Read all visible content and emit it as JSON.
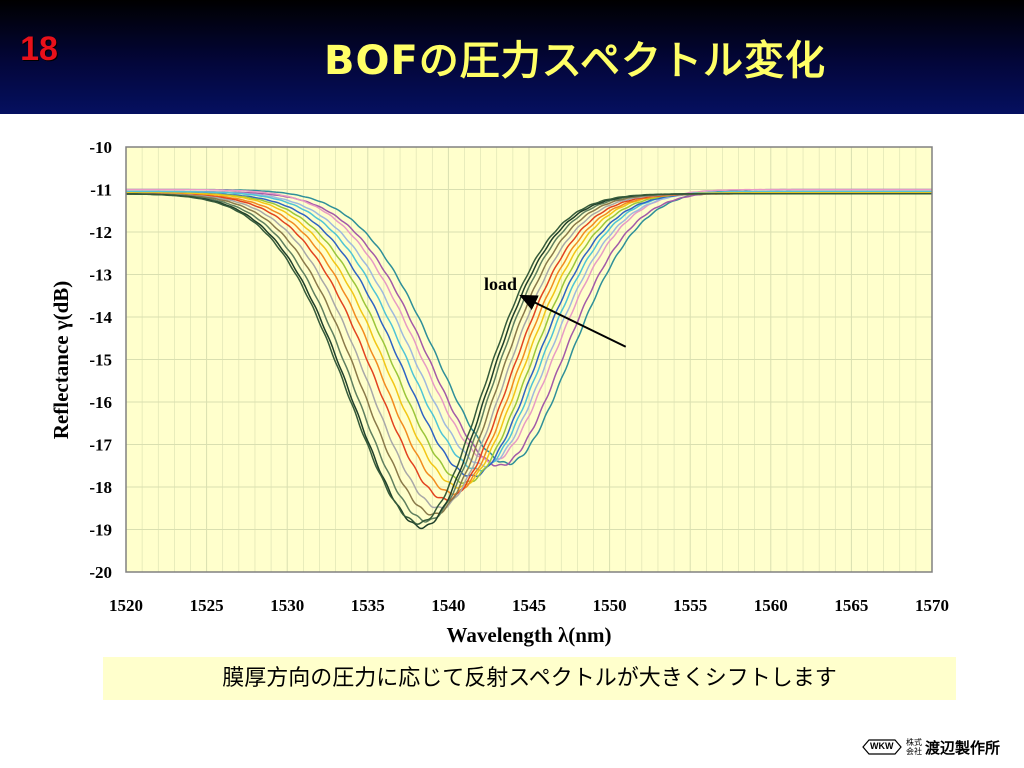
{
  "slide": {
    "number": "18",
    "title": "BOFの圧力スペクトル変化",
    "caption": "膜厚方向の圧力に応じて反射スペクトルが大きくシフトします"
  },
  "logo": {
    "badge": "WKW",
    "small_top": "株式",
    "small_bottom": "会社",
    "name": "渡辺製作所"
  },
  "chart_data": {
    "type": "line",
    "xlabel": "Wavelength λ(nm)",
    "ylabel": "Reflectance γ(dB)",
    "xlim": [
      1520,
      1570
    ],
    "ylim": [
      -20,
      -10
    ],
    "xticks": [
      1520,
      1525,
      1530,
      1535,
      1540,
      1545,
      1550,
      1555,
      1560,
      1565,
      1570
    ],
    "yticks": [
      -10,
      -11,
      -12,
      -13,
      -14,
      -15,
      -16,
      -17,
      -18,
      -19,
      -20
    ],
    "grid": true,
    "legend": "none",
    "annotations": [
      {
        "text": "load",
        "from": [
          1551.0,
          -14.7
        ],
        "to": [
          1544.5,
          -13.5
        ]
      }
    ],
    "colors": {
      "plot_background": "#ffffcc",
      "gridline": "#d9dfb0",
      "arrow": "#000000"
    },
    "series": [
      {
        "color": "#2f8f99",
        "dip_x": 1543.7,
        "dip_y": -17.45,
        "baseline": -11.0
      },
      {
        "color": "#a35aa8",
        "dip_x": 1543.2,
        "dip_y": -17.5,
        "baseline": -11.05
      },
      {
        "color": "#e79bc4",
        "dip_x": 1542.7,
        "dip_y": -17.4,
        "baseline": -11.0
      },
      {
        "color": "#9fb9de",
        "dip_x": 1542.3,
        "dip_y": -17.5,
        "baseline": -11.05
      },
      {
        "color": "#4fc4d6",
        "dip_x": 1541.9,
        "dip_y": -17.6,
        "baseline": -11.05
      },
      {
        "color": "#2f64c4",
        "dip_x": 1541.5,
        "dip_y": -17.75,
        "baseline": -11.08
      },
      {
        "color": "#9bc63a",
        "dip_x": 1541.1,
        "dip_y": -17.9,
        "baseline": -11.08
      },
      {
        "color": "#f2c617",
        "dip_x": 1540.7,
        "dip_y": -18.0,
        "baseline": -11.08
      },
      {
        "color": "#f28b1f",
        "dip_x": 1540.3,
        "dip_y": -18.15,
        "baseline": -11.1
      },
      {
        "color": "#e2431f",
        "dip_x": 1539.9,
        "dip_y": -18.3,
        "baseline": -11.1
      },
      {
        "color": "#a8a8a8",
        "dip_x": 1539.5,
        "dip_y": -18.5,
        "baseline": -11.1
      },
      {
        "color": "#8a7a4a",
        "dip_x": 1539.1,
        "dip_y": -18.65,
        "baseline": -11.1
      },
      {
        "color": "#5f7f5f",
        "dip_x": 1538.7,
        "dip_y": -18.8,
        "baseline": -11.1
      },
      {
        "color": "#1f3f2a",
        "dip_x": 1538.4,
        "dip_y": -18.95,
        "baseline": -11.1
      },
      {
        "color": "#355a3a",
        "dip_x": 1538.2,
        "dip_y": -18.85,
        "baseline": -11.1
      }
    ]
  }
}
